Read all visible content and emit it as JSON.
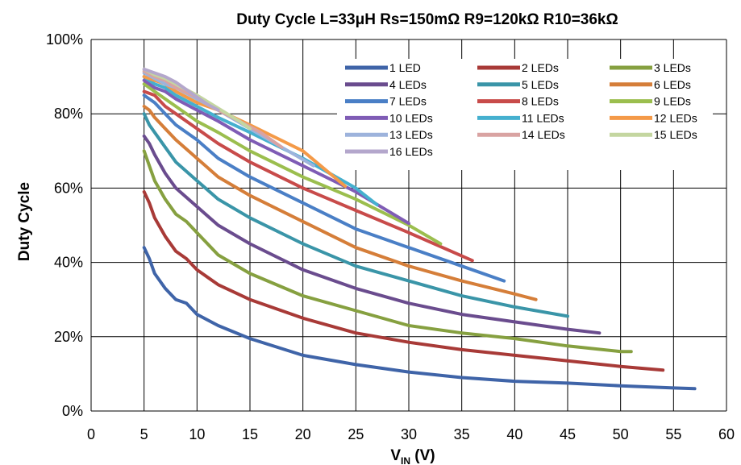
{
  "chart_data": {
    "type": "line",
    "title": "Duty Cycle L=33μH Rs=150mΩ R9=120kΩ R10=36kΩ",
    "xlabel": "V",
    "xlabel_sub": "IN",
    "xlabel_unit": " (V)",
    "ylabel": "Duty Cycle",
    "xlim": [
      0,
      60
    ],
    "ylim": [
      0,
      100
    ],
    "x_ticks": [
      0,
      5,
      10,
      15,
      20,
      25,
      30,
      35,
      40,
      45,
      50,
      55,
      60
    ],
    "y_ticks": [
      0,
      20,
      40,
      60,
      80,
      100
    ],
    "y_tick_labels": [
      "0%",
      "20%",
      "40%",
      "60%",
      "80%",
      "100%"
    ],
    "grid": true,
    "legend_position": "top-right",
    "series": [
      {
        "name": "1 LED",
        "color": "#3F64A8",
        "x": [
          5,
          5.5,
          6,
          7,
          8,
          9,
          10,
          12,
          15,
          20,
          25,
          30,
          35,
          40,
          45,
          50,
          55,
          57
        ],
        "y": [
          44,
          41,
          37,
          33,
          30,
          29,
          26,
          23,
          19.5,
          15,
          12.5,
          10.5,
          9,
          8,
          7.5,
          6.8,
          6.2,
          6
        ]
      },
      {
        "name": "2 LEDs",
        "color": "#A83A37",
        "x": [
          5,
          5.5,
          6,
          7,
          8,
          9,
          10,
          12,
          15,
          20,
          25,
          30,
          35,
          40,
          45,
          50,
          54
        ],
        "y": [
          59,
          56,
          52,
          47,
          43,
          41,
          38,
          34,
          30,
          25,
          21,
          18.5,
          16.5,
          15,
          13.5,
          12,
          11
        ]
      },
      {
        "name": "3 LEDs",
        "color": "#86A040",
        "x": [
          5,
          5.5,
          6,
          7,
          8,
          9,
          10,
          12,
          15,
          20,
          25,
          30,
          35,
          40,
          45,
          50,
          51
        ],
        "y": [
          70,
          66,
          62,
          57,
          53,
          51,
          48,
          42,
          37,
          31,
          27,
          23,
          21,
          19.5,
          17.5,
          16,
          16
        ]
      },
      {
        "name": "4 LEDs",
        "color": "#6A4C8E",
        "x": [
          5,
          5.5,
          6,
          7,
          8,
          10,
          12,
          15,
          20,
          25,
          30,
          35,
          40,
          45,
          48
        ],
        "y": [
          74,
          72,
          69,
          64,
          60,
          55,
          50,
          45,
          38,
          33,
          29,
          26,
          24,
          22,
          21
        ]
      },
      {
        "name": "5 LEDs",
        "color": "#3A95A8",
        "x": [
          5,
          5.5,
          6,
          7,
          8,
          10,
          12,
          15,
          20,
          25,
          30,
          35,
          40,
          45
        ],
        "y": [
          80,
          77,
          75,
          71,
          67,
          62,
          57,
          52,
          45,
          39,
          35,
          31,
          28,
          25.5
        ]
      },
      {
        "name": "6 LEDs",
        "color": "#D57E39",
        "x": [
          5,
          5.5,
          6,
          7,
          8,
          10,
          12,
          15,
          20,
          25,
          30,
          35,
          40,
          42
        ],
        "y": [
          82,
          81,
          79,
          76,
          73,
          68,
          63,
          58,
          51,
          44,
          39,
          35,
          31.5,
          30
        ]
      },
      {
        "name": "7 LEDs",
        "color": "#4A7FC6",
        "x": [
          5,
          6,
          7,
          8,
          10,
          12,
          15,
          20,
          25,
          30,
          35,
          39
        ],
        "y": [
          85,
          83,
          80,
          77,
          73,
          68,
          63,
          56,
          49,
          44,
          39,
          35
        ]
      },
      {
        "name": "8 LEDs",
        "color": "#C84B4A",
        "x": [
          5,
          6,
          7,
          8,
          10,
          12,
          15,
          20,
          25,
          30,
          36
        ],
        "y": [
          86,
          85,
          82,
          80,
          76,
          72,
          67,
          60,
          54,
          48,
          40.5
        ]
      },
      {
        "name": "9 LEDs",
        "color": "#9BBE4E",
        "x": [
          5,
          6,
          7,
          8,
          10,
          12,
          15,
          20,
          25,
          30,
          33
        ],
        "y": [
          88,
          86,
          84,
          82,
          78,
          75,
          70,
          63,
          57,
          50,
          45
        ]
      },
      {
        "name": "10 LEDs",
        "color": "#7F5CB5",
        "x": [
          5,
          6,
          7,
          8,
          10,
          12,
          15,
          20,
          25,
          30
        ],
        "y": [
          89,
          87,
          86,
          84,
          81,
          78,
          73,
          66,
          59,
          50.5
        ]
      },
      {
        "name": "11 LEDs",
        "color": "#45B0CF",
        "x": [
          5,
          6,
          7,
          8,
          10,
          12,
          15,
          20,
          25,
          27
        ],
        "y": [
          90,
          88,
          87,
          85,
          82,
          79,
          75,
          68,
          60,
          55.5
        ]
      },
      {
        "name": "12 LEDs",
        "color": "#F49A48",
        "x": [
          5,
          6,
          7,
          8,
          10,
          12,
          15,
          20,
          24
        ],
        "y": [
          90,
          89,
          88,
          86,
          83,
          81,
          77,
          70,
          60.5
        ]
      },
      {
        "name": "13 LEDs",
        "color": "#9DB3DC",
        "x": [
          5,
          6,
          7,
          8,
          10,
          12,
          15,
          18,
          21
        ],
        "y": [
          91,
          89.5,
          88,
          87,
          84,
          81,
          76,
          71,
          66
        ]
      },
      {
        "name": "14 LEDs",
        "color": "#D9A3A2",
        "x": [
          5,
          6,
          7,
          8,
          10,
          12,
          14,
          16,
          18
        ],
        "y": [
          91.5,
          90,
          89,
          87,
          84.5,
          81,
          78,
          75,
          71
        ]
      },
      {
        "name": "15 LEDs",
        "color": "#C4D6A0",
        "x": [
          5,
          6,
          7,
          8,
          10,
          12,
          14,
          15
        ],
        "y": [
          92,
          90.5,
          89.5,
          88,
          85,
          81.5,
          78,
          76
        ]
      },
      {
        "name": "16 LEDs",
        "color": "#B4A7CC",
        "x": [
          5,
          6,
          7,
          8,
          9,
          10,
          11,
          12
        ],
        "y": [
          92,
          91,
          90,
          88.5,
          86.5,
          84.5,
          82.5,
          81
        ]
      }
    ]
  }
}
